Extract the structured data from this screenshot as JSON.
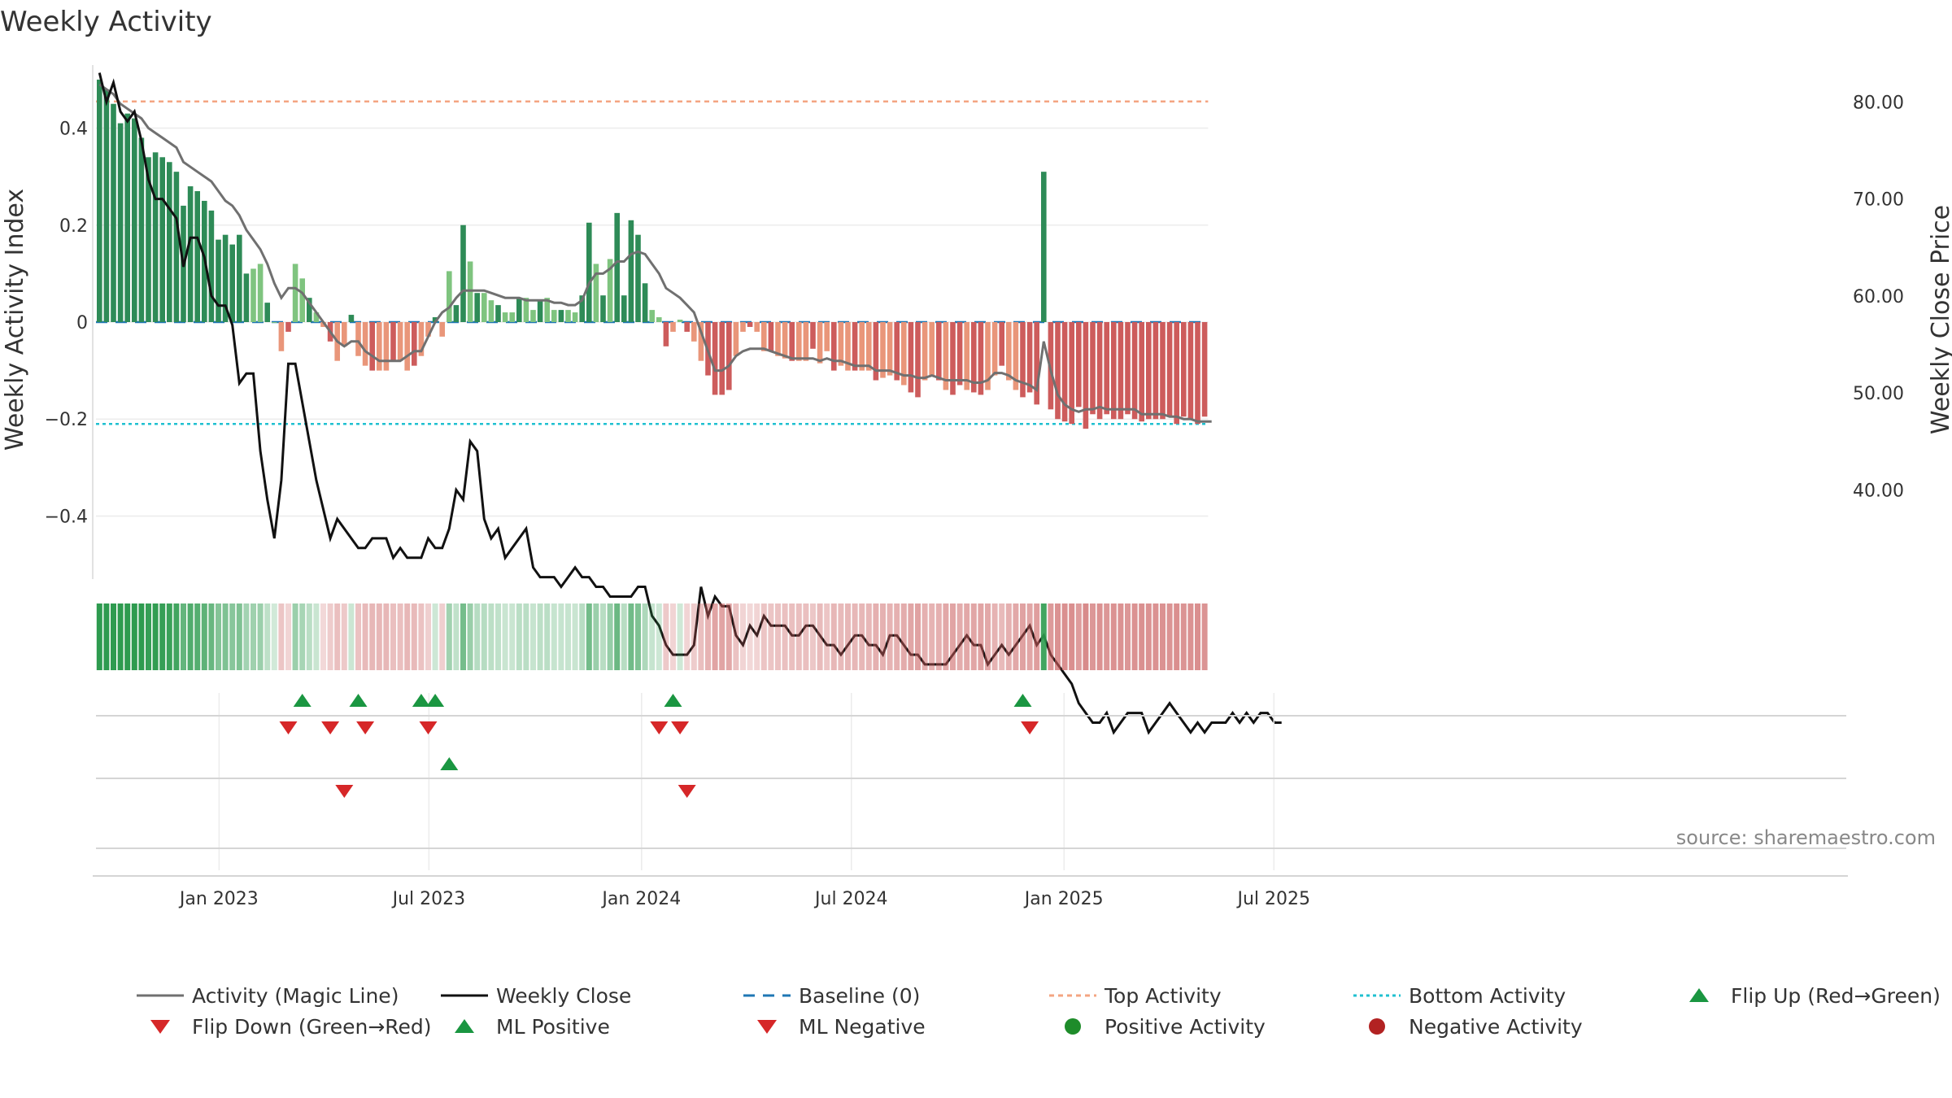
{
  "colors": {
    "pos_dark": "#2e8b57",
    "pos_light": "#7fc47f",
    "neg_dark": "#cd5c5c",
    "neg_light": "#e9967a",
    "magic": "#707070",
    "close": "#111111",
    "baseline": "#1f77b4",
    "top": "#f4a582",
    "bottom": "#20c0d0",
    "up": "#1a9641",
    "down": "#d62728"
  },
  "chart_data": {
    "type": "bar+line",
    "title": "Weekly Activity",
    "ylabel": "Weekly Activity Index",
    "y2label": "Weekly Close Price",
    "ylim": [
      -0.53,
      0.53
    ],
    "y2lim": [
      30.8,
      83.8
    ],
    "yticks": [
      {
        "value": 0.4,
        "label": "0.4"
      },
      {
        "value": 0.2,
        "label": "0.2"
      },
      {
        "value": 0,
        "label": "0"
      },
      {
        "value": -0.2,
        "label": "−0.2"
      },
      {
        "value": -0.4,
        "label": "−0.4"
      }
    ],
    "y2ticks": [
      {
        "value": 80,
        "label": "80.00"
      },
      {
        "value": 70,
        "label": "70.00"
      },
      {
        "value": 60,
        "label": "60.00"
      },
      {
        "value": 50,
        "label": "50.00"
      },
      {
        "value": 40,
        "label": "40.00"
      }
    ],
    "xticks": [
      {
        "index": 17.6,
        "label": "Jan 2023"
      },
      {
        "index": 47.6,
        "label": "Jul 2023"
      },
      {
        "index": 78,
        "label": "Jan 2024"
      },
      {
        "index": 108,
        "label": "Jul 2024"
      },
      {
        "index": 138.4,
        "label": "Jan 2025"
      },
      {
        "index": 168.4,
        "label": "Jul 2025"
      }
    ],
    "top_activity": 0.455,
    "bottom_activity": -0.21,
    "activity": [
      0.5,
      0.48,
      0.45,
      0.41,
      0.43,
      0.42,
      0.38,
      0.34,
      0.35,
      0.34,
      0.33,
      0.31,
      0.24,
      0.28,
      0.27,
      0.25,
      0.23,
      0.17,
      0.18,
      0.16,
      0.18,
      0.1,
      0.11,
      0.12,
      0.04,
      0.0,
      -0.06,
      -0.02,
      0.12,
      0.09,
      0.05,
      0.02,
      -0.01,
      -0.04,
      -0.08,
      -0.05,
      0.015,
      -0.07,
      -0.09,
      -0.1,
      -0.1,
      -0.1,
      -0.08,
      -0.08,
      -0.1,
      -0.09,
      -0.07,
      -0.03,
      0.01,
      -0.03,
      0.105,
      0.035,
      0.2,
      0.125,
      0.06,
      0.06,
      0.045,
      0.035,
      0.02,
      0.02,
      0.05,
      0.05,
      0.025,
      0.045,
      0.05,
      0.025,
      0.025,
      0.025,
      0.02,
      0.055,
      0.205,
      0.12,
      0.055,
      0.13,
      0.225,
      0.055,
      0.21,
      0.18,
      0.08,
      0.025,
      0.01,
      -0.05,
      -0.02,
      0.005,
      -0.02,
      -0.04,
      -0.08,
      -0.11,
      -0.15,
      -0.15,
      -0.14,
      -0.07,
      -0.02,
      -0.01,
      -0.02,
      -0.06,
      -0.06,
      -0.07,
      -0.075,
      -0.08,
      -0.08,
      -0.08,
      -0.055,
      -0.085,
      -0.06,
      -0.1,
      -0.09,
      -0.1,
      -0.1,
      -0.1,
      -0.1,
      -0.12,
      -0.115,
      -0.11,
      -0.12,
      -0.13,
      -0.145,
      -0.155,
      -0.12,
      -0.11,
      -0.12,
      -0.14,
      -0.15,
      -0.13,
      -0.14,
      -0.145,
      -0.15,
      -0.14,
      -0.11,
      -0.09,
      -0.12,
      -0.14,
      -0.155,
      -0.145,
      -0.17,
      0.31,
      -0.18,
      -0.2,
      -0.205,
      -0.21,
      -0.175,
      -0.22,
      -0.19,
      -0.2,
      -0.19,
      -0.2,
      -0.2,
      -0.19,
      -0.2,
      -0.205,
      -0.2,
      -0.2,
      -0.2,
      -0.195,
      -0.21,
      -0.195,
      -0.2,
      -0.21,
      -0.195
    ],
    "magic_line": [
      0.49,
      0.48,
      0.47,
      0.45,
      0.44,
      0.43,
      0.42,
      0.4,
      0.39,
      0.38,
      0.37,
      0.36,
      0.33,
      0.32,
      0.31,
      0.3,
      0.29,
      0.27,
      0.25,
      0.24,
      0.22,
      0.19,
      0.17,
      0.15,
      0.12,
      0.08,
      0.05,
      0.07,
      0.07,
      0.06,
      0.04,
      0.02,
      0.0,
      -0.02,
      -0.04,
      -0.05,
      -0.04,
      -0.04,
      -0.06,
      -0.07,
      -0.08,
      -0.08,
      -0.08,
      -0.08,
      -0.07,
      -0.06,
      -0.06,
      -0.03,
      0.0,
      0.02,
      0.03,
      0.05,
      0.065,
      0.065,
      0.065,
      0.065,
      0.06,
      0.055,
      0.05,
      0.05,
      0.05,
      0.045,
      0.045,
      0.045,
      0.045,
      0.04,
      0.04,
      0.035,
      0.035,
      0.045,
      0.08,
      0.1,
      0.1,
      0.11,
      0.125,
      0.125,
      0.14,
      0.145,
      0.14,
      0.12,
      0.1,
      0.07,
      0.06,
      0.05,
      0.035,
      0.02,
      -0.02,
      -0.06,
      -0.1,
      -0.1,
      -0.09,
      -0.07,
      -0.06,
      -0.055,
      -0.055,
      -0.055,
      -0.06,
      -0.065,
      -0.07,
      -0.075,
      -0.075,
      -0.075,
      -0.075,
      -0.08,
      -0.075,
      -0.08,
      -0.08,
      -0.085,
      -0.09,
      -0.09,
      -0.09,
      -0.1,
      -0.1,
      -0.1,
      -0.105,
      -0.11,
      -0.11,
      -0.115,
      -0.115,
      -0.11,
      -0.115,
      -0.12,
      -0.12,
      -0.12,
      -0.12,
      -0.125,
      -0.125,
      -0.12,
      -0.105,
      -0.105,
      -0.11,
      -0.12,
      -0.125,
      -0.13,
      -0.14,
      -0.04,
      -0.1,
      -0.15,
      -0.17,
      -0.18,
      -0.185,
      -0.18,
      -0.18,
      -0.175,
      -0.18,
      -0.18,
      -0.18,
      -0.18,
      -0.18,
      -0.19,
      -0.19,
      -0.19,
      -0.19,
      -0.195,
      -0.195,
      -0.2,
      -0.2,
      -0.205,
      -0.205,
      -0.205
    ],
    "weekly_close": [
      83,
      80,
      82,
      79,
      78,
      79,
      76,
      72,
      70,
      70,
      69,
      68,
      63,
      66,
      66,
      64,
      60,
      59,
      59,
      57,
      51,
      52,
      52,
      44,
      39,
      35,
      41,
      53,
      53,
      49,
      45,
      41,
      38,
      35,
      37,
      36,
      35,
      34,
      34,
      35,
      35,
      35,
      33,
      34,
      33,
      33,
      33,
      35,
      34,
      34,
      36,
      40,
      39,
      45,
      44,
      37,
      35,
      36,
      33,
      34,
      35,
      36,
      32,
      31,
      31,
      31,
      30,
      31,
      32,
      31,
      31,
      30,
      30,
      29,
      29,
      29,
      29,
      30,
      30,
      27,
      26,
      24,
      23,
      23,
      23,
      24,
      30,
      27,
      29,
      28,
      28,
      25,
      24,
      26,
      25,
      27,
      26,
      26,
      26,
      25,
      25,
      26,
      26,
      25,
      24,
      24,
      23,
      24,
      25,
      25,
      24,
      24,
      23,
      25,
      25,
      24,
      23,
      23,
      22,
      22,
      22,
      22,
      23,
      24,
      25,
      24,
      24,
      22,
      23,
      24,
      23,
      24,
      25,
      26,
      24,
      25,
      23,
      22,
      21,
      20,
      18,
      17,
      16,
      16,
      17,
      15,
      16,
      17,
      17,
      17,
      15,
      16,
      17,
      18,
      17,
      16,
      15,
      16,
      15,
      16,
      16,
      16,
      17,
      16,
      17,
      16,
      17,
      17,
      16,
      16
    ],
    "flip_up": [
      29,
      37,
      46,
      48,
      82,
      132
    ],
    "flip_down": [
      27,
      33,
      38,
      47,
      80,
      83,
      133
    ],
    "ml_positive": [
      50
    ],
    "ml_negative": [
      35,
      84
    ],
    "legend": [
      {
        "key": "magic",
        "label": "Activity (Magic Line)"
      },
      {
        "key": "close",
        "label": "Weekly Close"
      },
      {
        "key": "baseline",
        "label": "Baseline (0)"
      },
      {
        "key": "top",
        "label": "Top Activity"
      },
      {
        "key": "bottom",
        "label": "Bottom Activity"
      },
      {
        "key": "flipup",
        "label": "Flip Up (Red→Green)"
      },
      {
        "key": "flipdown",
        "label": "Flip Down (Green→Red)"
      },
      {
        "key": "mlpos",
        "label": "ML Positive"
      },
      {
        "key": "mlneg",
        "label": "ML Negative"
      },
      {
        "key": "posact",
        "label": "Positive Activity"
      },
      {
        "key": "negact",
        "label": "Negative Activity"
      }
    ],
    "source": "source: sharemaestro.com"
  }
}
